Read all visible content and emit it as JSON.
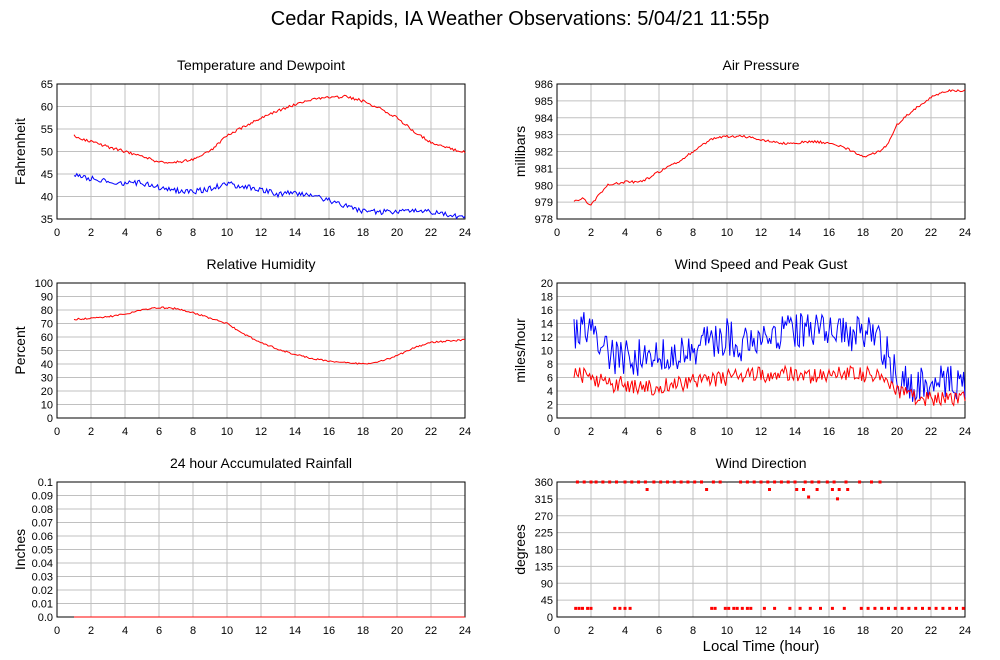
{
  "page": {
    "title": "Cedar Rapids, IA Weather Observations: 5/04/21 11:55p",
    "x_axis_label": "Local Time (hour)"
  },
  "colors": {
    "red": "#ff0000",
    "blue": "#0000ff",
    "grid": "#c0c0c0",
    "frame": "#000000"
  },
  "chart_data": [
    {
      "id": "temp",
      "type": "line",
      "title": "Temperature and Dewpoint",
      "ylabel": "Fahrenheit",
      "xlim": [
        0,
        24
      ],
      "ylim": [
        35,
        65
      ],
      "xticks": [
        2,
        4,
        6,
        8,
        10,
        12,
        14,
        16,
        18,
        20,
        22,
        24
      ],
      "yticks": [
        35,
        40,
        45,
        50,
        55,
        60,
        65
      ],
      "series": [
        {
          "color": "#ff0000",
          "noise": 0.3,
          "x": [
            1,
            2,
            3,
            4,
            5,
            6,
            7,
            8,
            9,
            10,
            11,
            12,
            13,
            14,
            15,
            16,
            17,
            18,
            19,
            20,
            21,
            22,
            23,
            24
          ],
          "y": [
            53.5,
            52.2,
            51.0,
            50.0,
            49.0,
            47.6,
            47.6,
            48.3,
            50.0,
            53.5,
            55.5,
            57.5,
            59.0,
            60.5,
            61.5,
            62.0,
            62.2,
            61.2,
            59.5,
            57.5,
            54.5,
            52.0,
            50.8,
            49.8
          ]
        },
        {
          "color": "#0000ff",
          "noise": 0.6,
          "x": [
            1,
            2,
            3,
            4,
            5,
            6,
            7,
            8,
            9,
            10,
            11,
            12,
            13,
            14,
            15,
            16,
            17,
            18,
            19,
            20,
            21,
            22,
            23,
            24
          ],
          "y": [
            44.8,
            44.0,
            43.4,
            43.0,
            43.0,
            42.0,
            41.4,
            41.0,
            41.8,
            42.8,
            42.2,
            41.5,
            40.5,
            40.8,
            40.2,
            39.2,
            37.8,
            36.8,
            36.5,
            36.8,
            37.0,
            36.5,
            35.8,
            35.4
          ]
        }
      ]
    },
    {
      "id": "pressure",
      "type": "line",
      "title": "Air Pressure",
      "ylabel": "millibars",
      "xlim": [
        0,
        24
      ],
      "ylim": [
        978,
        986
      ],
      "xticks": [
        2,
        4,
        6,
        8,
        10,
        12,
        14,
        16,
        18,
        20,
        22,
        24
      ],
      "yticks": [
        978,
        979,
        980,
        981,
        982,
        983,
        984,
        985,
        986
      ],
      "series": [
        {
          "color": "#ff0000",
          "noise": 0.07,
          "x": [
            1,
            1.5,
            2,
            2.5,
            3,
            4,
            5,
            6,
            7,
            8,
            9,
            10,
            11,
            12,
            13,
            14,
            15,
            16,
            17,
            18,
            19,
            19.5,
            20,
            21,
            22,
            23,
            24
          ],
          "y": [
            979.1,
            979.2,
            978.8,
            979.5,
            980.0,
            980.2,
            980.2,
            980.8,
            981.3,
            982.0,
            982.7,
            982.9,
            982.9,
            982.7,
            982.5,
            982.5,
            982.6,
            982.5,
            982.2,
            981.7,
            982.0,
            982.5,
            983.6,
            984.5,
            985.2,
            985.6,
            985.6
          ]
        }
      ]
    },
    {
      "id": "humidity",
      "type": "line",
      "title": "Relative Humidity",
      "ylabel": "Percent",
      "xlim": [
        0,
        24
      ],
      "ylim": [
        0,
        100
      ],
      "xticks": [
        2,
        4,
        6,
        8,
        10,
        12,
        14,
        16,
        18,
        20,
        22,
        24
      ],
      "yticks": [
        0,
        10,
        20,
        30,
        40,
        50,
        60,
        70,
        80,
        90,
        100
      ],
      "series": [
        {
          "color": "#ff0000",
          "noise": 0.6,
          "x": [
            1,
            2,
            3,
            4,
            5,
            6,
            7,
            8,
            9,
            10,
            11,
            12,
            13,
            14,
            15,
            16,
            17,
            18,
            19,
            20,
            21,
            22,
            23,
            24
          ],
          "y": [
            73,
            74,
            75,
            77,
            80,
            82,
            81,
            78,
            74,
            70,
            62,
            56,
            51,
            47,
            44,
            42,
            41,
            40,
            42,
            46,
            52,
            56,
            57,
            58
          ]
        }
      ]
    },
    {
      "id": "wind",
      "type": "line",
      "title": "Wind Speed and Peak Gust",
      "ylabel": "miles/hour",
      "xlim": [
        0,
        24
      ],
      "ylim": [
        0,
        20
      ],
      "xticks": [
        2,
        4,
        6,
        8,
        10,
        12,
        14,
        16,
        18,
        20,
        22,
        24
      ],
      "yticks": [
        0,
        2,
        4,
        6,
        8,
        10,
        12,
        14,
        16,
        18,
        20
      ],
      "series": [
        {
          "color": "#0000ff",
          "noise": 2.8,
          "x": [
            1,
            2,
            2.5,
            3,
            4,
            5,
            6,
            7,
            8,
            9,
            10,
            11,
            12,
            13,
            14,
            15,
            16,
            17,
            18,
            19,
            19.5,
            20,
            21,
            22,
            23,
            24
          ],
          "y": [
            13,
            14,
            12,
            9,
            9,
            9,
            9,
            10,
            10,
            11,
            12,
            11,
            12,
            13,
            13,
            13,
            13,
            12,
            13,
            11,
            9,
            6,
            5,
            5,
            6,
            5
          ]
        },
        {
          "color": "#ff0000",
          "noise": 1.2,
          "x": [
            1,
            2,
            3,
            4,
            5,
            6,
            7,
            8,
            9,
            10,
            11,
            12,
            13,
            14,
            15,
            16,
            17,
            18,
            19,
            20,
            21,
            22,
            23,
            24
          ],
          "y": [
            6.5,
            6,
            5,
            5,
            4.5,
            4.5,
            5,
            5.5,
            5.5,
            6,
            6,
            6.5,
            6.5,
            6.5,
            6,
            6.5,
            6.5,
            6.5,
            6,
            4,
            3,
            3,
            3,
            3
          ]
        }
      ]
    },
    {
      "id": "rain",
      "type": "line",
      "title": "24 hour Accumulated Rainfall",
      "ylabel": "Inches",
      "xlim": [
        0,
        24
      ],
      "ylim": [
        0,
        0.1
      ],
      "xticks": [
        2,
        4,
        6,
        8,
        10,
        12,
        14,
        16,
        18,
        20,
        22,
        24
      ],
      "yticks": [
        0.0,
        0.01,
        0.02,
        0.03,
        0.04,
        0.05,
        0.06,
        0.07,
        0.08,
        0.09,
        0.1
      ],
      "ytick_labels": [
        "0.0",
        "0.01",
        "0.02",
        "0.03",
        "0.04",
        "0.05",
        "0.06",
        "0.07",
        "0.08",
        "0.09",
        "0.1"
      ],
      "series": [
        {
          "color": "#ff0000",
          "noise": 0,
          "x": [
            1,
            24
          ],
          "y": [
            0,
            0
          ]
        }
      ]
    },
    {
      "id": "direction",
      "type": "scatter",
      "title": "Wind Direction",
      "ylabel": "degrees",
      "xlim": [
        0,
        24
      ],
      "ylim": [
        0,
        360
      ],
      "xticks": [
        2,
        4,
        6,
        8,
        10,
        12,
        14,
        16,
        18,
        20,
        22,
        24
      ],
      "yticks": [
        0,
        45,
        90,
        135,
        180,
        225,
        270,
        315,
        360
      ],
      "series": [
        {
          "color": "#ff0000",
          "points": [
            [
              1.2,
              360
            ],
            [
              1.6,
              360
            ],
            [
              2.0,
              360
            ],
            [
              2.3,
              360
            ],
            [
              2.7,
              360
            ],
            [
              3.1,
              360
            ],
            [
              3.5,
              360
            ],
            [
              4.0,
              360
            ],
            [
              4.4,
              360
            ],
            [
              4.8,
              360
            ],
            [
              5.2,
              360
            ],
            [
              5.7,
              360
            ],
            [
              6.1,
              360
            ],
            [
              6.5,
              360
            ],
            [
              6.9,
              360
            ],
            [
              7.3,
              360
            ],
            [
              7.7,
              360
            ],
            [
              8.1,
              360
            ],
            [
              8.5,
              360
            ],
            [
              9.2,
              360
            ],
            [
              9.6,
              360
            ],
            [
              10.8,
              360
            ],
            [
              11.2,
              360
            ],
            [
              11.6,
              360
            ],
            [
              12.0,
              360
            ],
            [
              12.4,
              360
            ],
            [
              12.8,
              360
            ],
            [
              13.2,
              360
            ],
            [
              13.6,
              360
            ],
            [
              14.0,
              360
            ],
            [
              14.6,
              360
            ],
            [
              15.0,
              360
            ],
            [
              15.4,
              360
            ],
            [
              15.9,
              360
            ],
            [
              16.3,
              360
            ],
            [
              17.0,
              360
            ],
            [
              17.8,
              360
            ],
            [
              18.5,
              360
            ],
            [
              19.0,
              360
            ],
            [
              5.3,
              340
            ],
            [
              8.8,
              340
            ],
            [
              12.5,
              340
            ],
            [
              14.1,
              340
            ],
            [
              14.5,
              340
            ],
            [
              15.3,
              340
            ],
            [
              16.2,
              340
            ],
            [
              16.6,
              340
            ],
            [
              17.1,
              340
            ],
            [
              14.8,
              320
            ],
            [
              16.5,
              315
            ],
            [
              1.1,
              23
            ],
            [
              1.3,
              23
            ],
            [
              1.5,
              23
            ],
            [
              1.8,
              23
            ],
            [
              2.0,
              23
            ],
            [
              3.4,
              23
            ],
            [
              3.7,
              23
            ],
            [
              4.0,
              23
            ],
            [
              4.3,
              23
            ],
            [
              9.1,
              23
            ],
            [
              9.3,
              23
            ],
            [
              9.9,
              23
            ],
            [
              10.1,
              23
            ],
            [
              10.4,
              23
            ],
            [
              10.6,
              23
            ],
            [
              10.9,
              23
            ],
            [
              11.2,
              23
            ],
            [
              11.4,
              23
            ],
            [
              12.2,
              23
            ],
            [
              12.8,
              23
            ],
            [
              13.7,
              23
            ],
            [
              14.3,
              23
            ],
            [
              14.9,
              23
            ],
            [
              15.5,
              23
            ],
            [
              16.2,
              23
            ],
            [
              16.9,
              23
            ],
            [
              17.9,
              23
            ],
            [
              18.3,
              23
            ],
            [
              18.7,
              23
            ],
            [
              19.1,
              23
            ],
            [
              19.5,
              23
            ],
            [
              19.9,
              23
            ],
            [
              20.3,
              23
            ],
            [
              20.7,
              23
            ],
            [
              21.1,
              23
            ],
            [
              21.5,
              23
            ],
            [
              21.9,
              23
            ],
            [
              22.3,
              23
            ],
            [
              22.7,
              23
            ],
            [
              23.1,
              23
            ],
            [
              23.5,
              23
            ],
            [
              23.9,
              23
            ]
          ]
        }
      ]
    }
  ]
}
